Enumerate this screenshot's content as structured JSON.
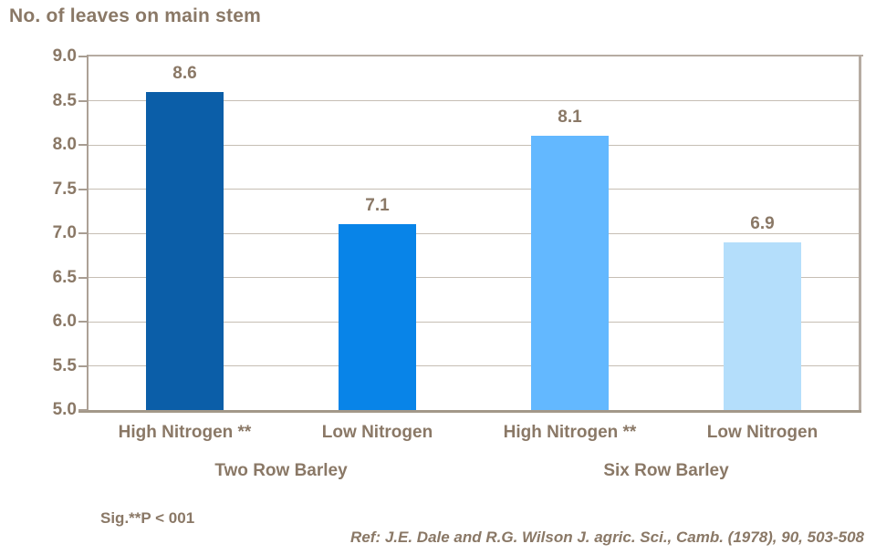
{
  "chart_data": {
    "type": "bar",
    "title": "No. of leaves on main stem",
    "categories": [
      "High Nitrogen **",
      "Low Nitrogen",
      "High Nitrogen **",
      "Low Nitrogen"
    ],
    "values": [
      8.6,
      7.1,
      8.1,
      6.9
    ],
    "value_labels": [
      "8.6",
      "7.1",
      "8.1",
      "6.9"
    ],
    "groups": [
      {
        "label": "Two Row Barley",
        "span": [
          0,
          1
        ]
      },
      {
        "label": "Six Row Barley",
        "span": [
          2,
          3
        ]
      }
    ],
    "bar_colors": [
      "#0B5EA8",
      "#0884E8",
      "#63B8FF",
      "#B4DEFB"
    ],
    "ylim": [
      5.0,
      9.0
    ],
    "ytick_step": 0.5,
    "ytick_labels": [
      "9.0",
      "8.5",
      "8.0",
      "7.5",
      "7.0",
      "6.5",
      "6.0",
      "5.5",
      "5.0"
    ],
    "xlabel": "",
    "ylabel": "No. of leaves on main stem",
    "grid": true,
    "legend": "none"
  },
  "footnotes": {
    "significance": "Sig.**P < 001",
    "reference": "Ref: J.E. Dale and R.G. Wilson J. agric. Sci., Camb. (1978), 90, 503-508"
  },
  "colors": {
    "text": "#8A7866",
    "gridline": "#C6BEB4",
    "frame": "#B6ACA2",
    "axis_left": "#ACA196",
    "axis_bottom": "#A39889",
    "tick": "#A89D92",
    "background": "#FFFFFF"
  }
}
